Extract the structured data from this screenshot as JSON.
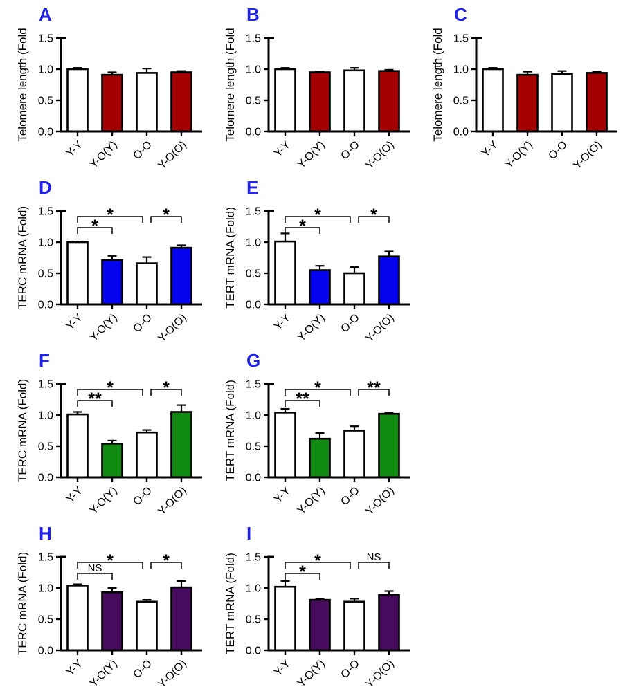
{
  "figure": {
    "panel_label_color": "#2222ee",
    "axis_color": "#000000",
    "bar_border_color": "#000000",
    "row_accent_colors": {
      "telomere_rows": "#a40000",
      "terc_tert_row2": "#0404ee",
      "terc_tert_row3": "#108a10",
      "terc_tert_row4": "#470b5e"
    }
  },
  "chart_data": [
    {
      "type": "bar",
      "panel": "A",
      "ylabel": "Telomere length (Fold",
      "categories": [
        "Y-Y",
        "Y-O(Y)",
        "O-O",
        "Y-O(O)"
      ],
      "values": [
        1.0,
        0.91,
        0.94,
        0.95
      ],
      "errors": [
        0.02,
        0.04,
        0.07,
        0.02
      ],
      "bar_fills": [
        "#ffffff",
        "#a40000",
        "#ffffff",
        "#a40000"
      ],
      "ylim": [
        0,
        1.5
      ],
      "yticks": [
        0.0,
        0.5,
        1.0,
        1.5
      ],
      "significance": []
    },
    {
      "type": "bar",
      "panel": "B",
      "ylabel": "Telomere length (Fold",
      "categories": [
        "Y-Y",
        "Y-O(Y)",
        "O-O",
        "Y-O(O)"
      ],
      "values": [
        1.0,
        0.95,
        0.98,
        0.97
      ],
      "errors": [
        0.02,
        0.01,
        0.04,
        0.02
      ],
      "bar_fills": [
        "#ffffff",
        "#a40000",
        "#ffffff",
        "#a40000"
      ],
      "ylim": [
        0,
        1.5
      ],
      "yticks": [
        0.0,
        0.5,
        1.0,
        1.5
      ],
      "significance": []
    },
    {
      "type": "bar",
      "panel": "C",
      "ylabel": "Telomere length (Fold",
      "categories": [
        "Y-Y",
        "Y-O(Y)",
        "O-O",
        "Y-O(O)"
      ],
      "values": [
        1.0,
        0.91,
        0.92,
        0.94
      ],
      "errors": [
        0.02,
        0.05,
        0.05,
        0.02
      ],
      "bar_fills": [
        "#ffffff",
        "#a40000",
        "#ffffff",
        "#a40000"
      ],
      "ylim": [
        0,
        1.5
      ],
      "yticks": [
        0.0,
        0.5,
        1.0,
        1.5
      ],
      "significance": []
    },
    {
      "type": "bar",
      "panel": "D",
      "ylabel": "TERC mRNA (Fold)",
      "categories": [
        "Y-Y",
        "Y-O(Y)",
        "O-O",
        "Y-O(O)"
      ],
      "values": [
        1.0,
        0.71,
        0.66,
        0.91
      ],
      "errors": [
        0.01,
        0.07,
        0.1,
        0.04
      ],
      "bar_fills": [
        "#ffffff",
        "#0404ee",
        "#ffffff",
        "#0404ee"
      ],
      "ylim": [
        0,
        1.5
      ],
      "yticks": [
        0.0,
        0.5,
        1.0,
        1.5
      ],
      "significance": [
        {
          "from": 0,
          "to": 1,
          "label": "*",
          "level": "low"
        },
        {
          "from": 0,
          "to": 2,
          "label": "*",
          "level": "high"
        },
        {
          "from": 2,
          "to": 3,
          "label": "*",
          "level": "high"
        }
      ]
    },
    {
      "type": "bar",
      "panel": "E",
      "ylabel": "TERT mRNA (Fold)",
      "categories": [
        "Y-Y",
        "Y-O(Y)",
        "O-O",
        "Y-O(O)"
      ],
      "values": [
        1.01,
        0.55,
        0.5,
        0.77
      ],
      "errors": [
        0.13,
        0.07,
        0.1,
        0.08
      ],
      "bar_fills": [
        "#ffffff",
        "#0404ee",
        "#ffffff",
        "#0404ee"
      ],
      "ylim": [
        0,
        1.5
      ],
      "yticks": [
        0.0,
        0.5,
        1.0,
        1.5
      ],
      "significance": [
        {
          "from": 0,
          "to": 1,
          "label": "*",
          "level": "low"
        },
        {
          "from": 0,
          "to": 2,
          "label": "*",
          "level": "high"
        },
        {
          "from": 2,
          "to": 3,
          "label": "*",
          "level": "high"
        }
      ]
    },
    {
      "type": "bar",
      "panel": "F",
      "ylabel": "TERC mRNA (Fold)",
      "categories": [
        "Y-Y",
        "Y-O(Y)",
        "O-O",
        "Y-O(O)"
      ],
      "values": [
        1.01,
        0.54,
        0.72,
        1.05
      ],
      "errors": [
        0.04,
        0.05,
        0.04,
        0.11
      ],
      "bar_fills": [
        "#ffffff",
        "#108a10",
        "#ffffff",
        "#108a10"
      ],
      "ylim": [
        0,
        1.5
      ],
      "yticks": [
        0.0,
        0.5,
        1.0,
        1.5
      ],
      "significance": [
        {
          "from": 0,
          "to": 1,
          "label": "**",
          "level": "low"
        },
        {
          "from": 0,
          "to": 2,
          "label": "*",
          "level": "high"
        },
        {
          "from": 2,
          "to": 3,
          "label": "*",
          "level": "high"
        }
      ]
    },
    {
      "type": "bar",
      "panel": "G",
      "ylabel": "TERT mRNA (Fold)",
      "categories": [
        "Y-Y",
        "Y-O(Y)",
        "O-O",
        "Y-O(O)"
      ],
      "values": [
        1.04,
        0.62,
        0.75,
        1.02
      ],
      "errors": [
        0.06,
        0.09,
        0.07,
        0.02
      ],
      "bar_fills": [
        "#ffffff",
        "#108a10",
        "#ffffff",
        "#108a10"
      ],
      "ylim": [
        0,
        1.5
      ],
      "yticks": [
        0.0,
        0.5,
        1.0,
        1.5
      ],
      "significance": [
        {
          "from": 0,
          "to": 1,
          "label": "**",
          "level": "low"
        },
        {
          "from": 0,
          "to": 2,
          "label": "*",
          "level": "high"
        },
        {
          "from": 2,
          "to": 3,
          "label": "**",
          "level": "high"
        }
      ]
    },
    {
      "type": "bar",
      "panel": "H",
      "ylabel": "TERC mRNA (Fold)",
      "categories": [
        "Y-Y",
        "Y-O(Y)",
        "O-O",
        "Y-O(O)"
      ],
      "values": [
        1.04,
        0.93,
        0.78,
        1.01
      ],
      "errors": [
        0.02,
        0.07,
        0.03,
        0.1
      ],
      "bar_fills": [
        "#ffffff",
        "#470b5e",
        "#ffffff",
        "#470b5e"
      ],
      "ylim": [
        0,
        1.5
      ],
      "yticks": [
        0.0,
        0.5,
        1.0,
        1.5
      ],
      "significance": [
        {
          "from": 0,
          "to": 1,
          "label": "NS",
          "level": "low"
        },
        {
          "from": 0,
          "to": 2,
          "label": "*",
          "level": "high"
        },
        {
          "from": 2,
          "to": 3,
          "label": "*",
          "level": "high"
        }
      ]
    },
    {
      "type": "bar",
      "panel": "I",
      "ylabel": "TERT mRNA (Fold)",
      "categories": [
        "Y-Y",
        "Y-O(Y)",
        "O-O",
        "Y-O(O)"
      ],
      "values": [
        1.02,
        0.81,
        0.78,
        0.89
      ],
      "errors": [
        0.09,
        0.02,
        0.05,
        0.06
      ],
      "bar_fills": [
        "#ffffff",
        "#470b5e",
        "#ffffff",
        "#470b5e"
      ],
      "ylim": [
        0,
        1.5
      ],
      "yticks": [
        0.0,
        0.5,
        1.0,
        1.5
      ],
      "significance": [
        {
          "from": 0,
          "to": 1,
          "label": "*",
          "level": "low"
        },
        {
          "from": 0,
          "to": 2,
          "label": "*",
          "level": "high"
        },
        {
          "from": 2,
          "to": 3,
          "label": "NS",
          "level": "high"
        }
      ]
    }
  ]
}
